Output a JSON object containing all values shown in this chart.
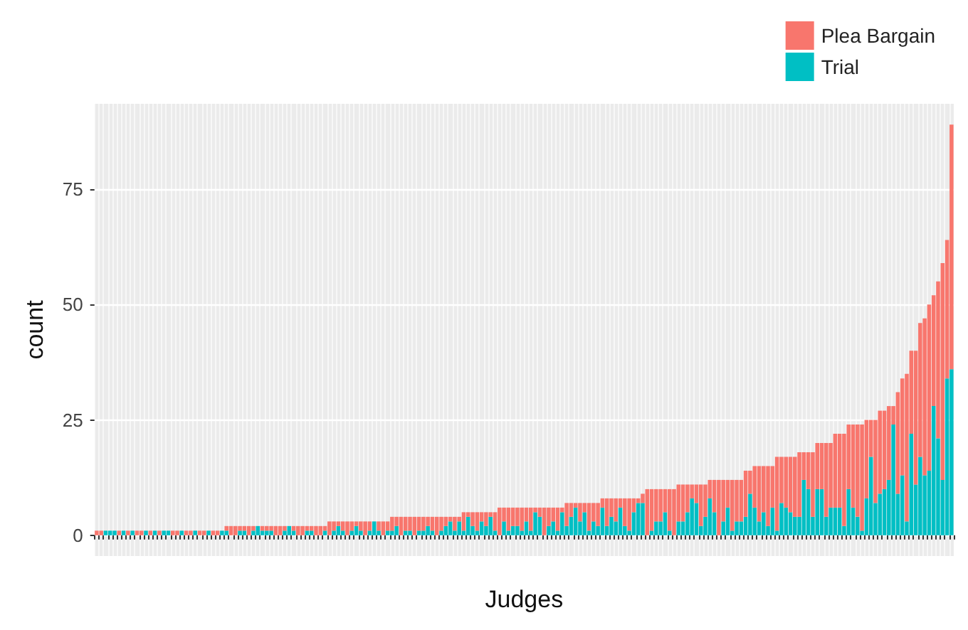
{
  "chart_data": {
    "type": "bar",
    "xlabel": "Judges",
    "ylabel": "count",
    "stacked": true,
    "grid": true,
    "legend": "top right",
    "tick_labels": "y",
    "ylim": [
      -4.5,
      93.5
    ],
    "yticks": [
      0,
      25,
      50,
      75
    ],
    "categories": [
      null,
      null,
      null,
      null,
      null,
      null,
      null,
      null,
      null,
      null,
      null,
      null,
      null,
      null,
      null,
      null,
      null,
      null,
      null,
      null,
      null,
      null,
      null,
      null,
      null,
      null,
      null,
      null,
      null,
      null,
      null,
      null,
      null,
      null,
      null,
      null,
      null,
      null,
      null,
      null,
      null,
      null,
      null,
      null,
      null,
      null,
      null,
      null,
      null,
      null,
      null,
      null,
      null,
      null,
      null,
      null,
      null,
      null,
      null,
      null,
      null,
      null,
      null,
      null,
      null,
      null,
      null,
      null,
      null,
      null,
      null,
      null,
      null,
      null,
      null,
      null,
      null,
      null,
      null,
      null,
      null,
      null,
      null,
      null,
      null,
      null,
      null,
      null,
      null,
      null,
      null,
      null,
      null,
      null,
      null,
      null,
      null,
      null,
      null,
      null,
      null,
      null,
      null,
      null,
      null,
      null,
      null,
      null,
      null,
      null,
      null,
      null,
      null,
      null,
      null,
      null,
      null,
      null,
      null,
      null,
      null,
      null,
      null,
      null,
      null,
      null,
      null,
      null,
      null,
      null,
      null,
      null,
      null,
      null,
      null,
      null,
      null,
      null,
      null,
      null,
      null,
      null,
      null,
      null,
      null,
      null,
      null,
      null,
      null,
      null,
      null,
      null,
      null,
      null,
      null,
      null,
      null,
      null,
      null,
      null,
      null,
      null,
      null,
      null,
      null,
      null,
      null,
      null,
      null,
      null,
      null,
      null,
      null,
      null,
      null,
      null,
      null,
      null,
      null,
      null,
      null,
      null,
      null,
      null,
      null,
      null,
      null,
      null,
      null,
      null,
      null,
      null
    ],
    "series": [
      {
        "name": "Trial",
        "color": "#00bfc4",
        "values": [
          0,
          0,
          1,
          1,
          1,
          0,
          1,
          0,
          1,
          0,
          0,
          1,
          0,
          1,
          0,
          1,
          1,
          0,
          0,
          1,
          0,
          0,
          1,
          0,
          0,
          1,
          0,
          0,
          1,
          1,
          0,
          0,
          1,
          1,
          0,
          1,
          2,
          1,
          1,
          1,
          0,
          0,
          1,
          2,
          1,
          0,
          0,
          1,
          1,
          0,
          0,
          1,
          0,
          1,
          2,
          1,
          0,
          1,
          2,
          1,
          0,
          1,
          3,
          1,
          0,
          1,
          1,
          2,
          0,
          1,
          1,
          0,
          1,
          1,
          2,
          1,
          0,
          1,
          2,
          3,
          1,
          3,
          1,
          4,
          2,
          1,
          3,
          2,
          4,
          1,
          0,
          3,
          1,
          2,
          2,
          1,
          3,
          1,
          5,
          4,
          0,
          2,
          3,
          1,
          5,
          2,
          4,
          6,
          3,
          5,
          1,
          3,
          2,
          6,
          2,
          4,
          3,
          6,
          2,
          1,
          5,
          7,
          7,
          0,
          1,
          3,
          3,
          5,
          1,
          0,
          3,
          3,
          5,
          8,
          7,
          2,
          4,
          8,
          5,
          0,
          3,
          6,
          1,
          3,
          3,
          4,
          9,
          6,
          3,
          5,
          2,
          6,
          1,
          7,
          6,
          5,
          4,
          4,
          12,
          10,
          4,
          10,
          10,
          4,
          6,
          6,
          6,
          2,
          10,
          6,
          4,
          1,
          8,
          17,
          7,
          9,
          10,
          12,
          24,
          9,
          13,
          3,
          22,
          11,
          17,
          13,
          14,
          28,
          21,
          12,
          34,
          36
        ]
      },
      {
        "name": "Plea Bargain",
        "color": "#f8766d",
        "values": [
          1,
          1,
          0,
          0,
          0,
          1,
          0,
          1,
          0,
          1,
          1,
          0,
          1,
          0,
          1,
          0,
          0,
          1,
          1,
          0,
          1,
          1,
          0,
          1,
          1,
          0,
          1,
          1,
          0,
          1,
          2,
          2,
          1,
          1,
          2,
          1,
          0,
          1,
          1,
          1,
          2,
          2,
          1,
          0,
          1,
          2,
          2,
          1,
          1,
          2,
          2,
          1,
          3,
          2,
          1,
          2,
          3,
          2,
          1,
          2,
          3,
          2,
          0,
          2,
          3,
          2,
          3,
          2,
          4,
          3,
          3,
          4,
          3,
          3,
          2,
          3,
          4,
          3,
          2,
          1,
          3,
          1,
          4,
          1,
          3,
          4,
          2,
          3,
          1,
          4,
          6,
          3,
          5,
          4,
          4,
          5,
          3,
          5,
          1,
          2,
          6,
          4,
          3,
          5,
          1,
          5,
          3,
          1,
          4,
          2,
          6,
          4,
          5,
          2,
          6,
          4,
          5,
          2,
          6,
          7,
          3,
          1,
          2,
          10,
          9,
          7,
          7,
          5,
          9,
          10,
          8,
          8,
          6,
          3,
          4,
          9,
          7,
          4,
          7,
          12,
          9,
          6,
          11,
          9,
          9,
          10,
          5,
          9,
          12,
          10,
          13,
          9,
          16,
          10,
          11,
          12,
          13,
          14,
          6,
          8,
          14,
          10,
          10,
          16,
          14,
          16,
          16,
          20,
          14,
          18,
          20,
          23,
          17,
          8,
          18,
          18,
          17,
          16,
          4,
          22,
          21,
          32,
          18,
          29,
          29,
          34,
          36,
          24,
          34,
          47,
          30,
          53
        ]
      }
    ]
  }
}
